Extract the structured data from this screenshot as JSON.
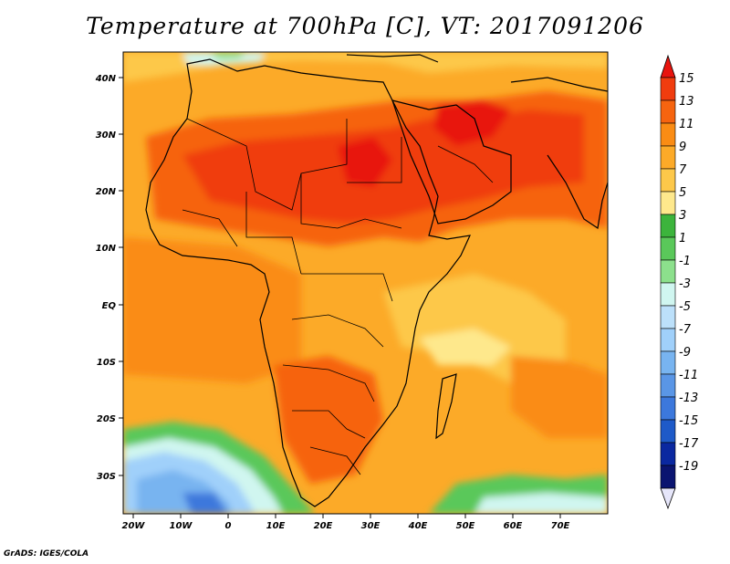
{
  "title": "Temperature at 700hPa [C], VT: 2017091206",
  "credit": "GrADS: IGES/COLA",
  "lat_labels": [
    "40N",
    "30N",
    "20N",
    "10N",
    "EQ",
    "10S",
    "20S",
    "30S"
  ],
  "lon_labels": [
    "20W",
    "10W",
    "0",
    "10E",
    "20E",
    "30E",
    "40E",
    "50E",
    "60E",
    "70E"
  ],
  "colorbar": {
    "labels": [
      "15",
      "13",
      "11",
      "9",
      "7",
      "5",
      "3",
      "1",
      "-1",
      "-3",
      "-5",
      "-7",
      "-9",
      "-11",
      "-13",
      "-15",
      "-17",
      "-19"
    ],
    "colors": [
      "#e8140e",
      "#f03c0e",
      "#f6640f",
      "#fa8c14",
      "#fcaa28",
      "#fdc84a",
      "#fee88c",
      "#3cb43c",
      "#5ac85a",
      "#8ce08c",
      "#d0f6f0",
      "#bce0fa",
      "#a0d0fa",
      "#78b4f0",
      "#5a96e6",
      "#3c78dc",
      "#1e5ac8",
      "#0a28a0",
      "#0a1470",
      "#e6e6fa"
    ]
  },
  "map": {
    "region": "Africa / Middle East",
    "lat_range": [
      -37,
      45
    ],
    "lon_range": [
      -22,
      80
    ],
    "field": "Temperature at 700hPa",
    "units": "C"
  }
}
